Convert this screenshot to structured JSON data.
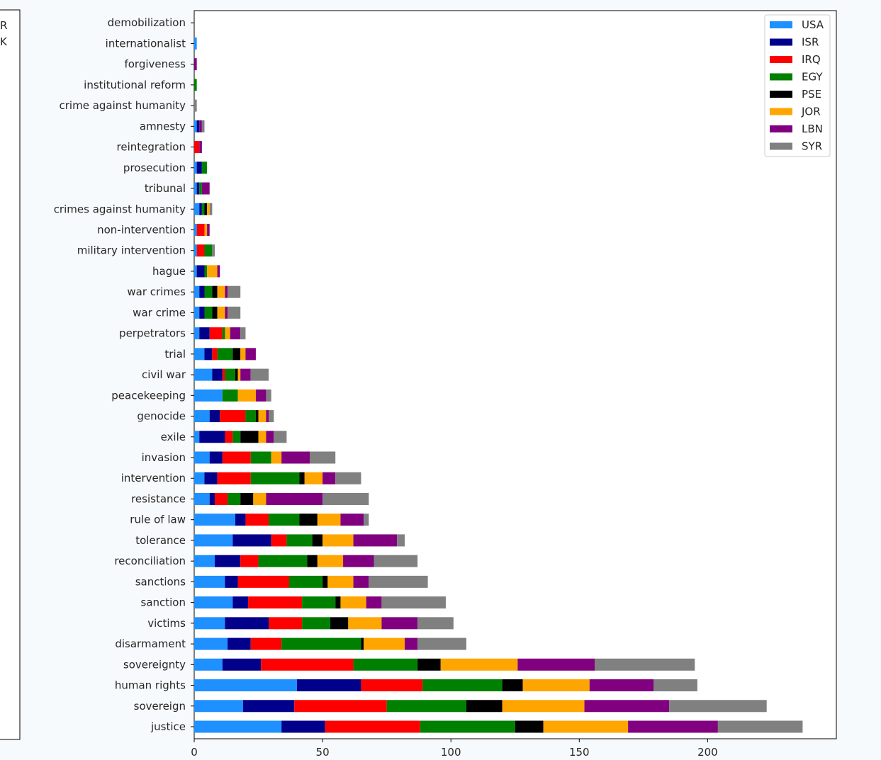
{
  "left_legend_fragments": [
    "R",
    "K"
  ],
  "chart_data": {
    "type": "bar",
    "orientation": "horizontal",
    "stacked": true,
    "title": "",
    "xlabel": "",
    "ylabel": "",
    "xlim": [
      0,
      250
    ],
    "xticks": [
      0,
      50,
      100,
      150,
      200
    ],
    "grid": false,
    "legend_position": "top-right",
    "categories": [
      "justice",
      "sovereign",
      "human rights",
      "sovereignty",
      "disarmament",
      "victims",
      "sanction",
      "sanctions",
      "reconciliation",
      "tolerance",
      "rule of law",
      "resistance",
      "intervention",
      "invasion",
      "exile",
      "genocide",
      "peacekeeping",
      "civil war",
      "trial",
      "perpetrators",
      "war crime",
      "war crimes",
      "hague",
      "military intervention",
      "non-intervention",
      "crimes against humanity",
      "tribunal",
      "prosecution",
      "reintegration",
      "amnesty",
      "crime against humanity",
      "institutional reform",
      "forgiveness",
      "internationalist",
      "demobilization"
    ],
    "series": [
      {
        "name": "USA",
        "color": "#1e90ff",
        "values": [
          34,
          19,
          40,
          11,
          13,
          12,
          15,
          12,
          8,
          15,
          16,
          6,
          4,
          6,
          2,
          6,
          11,
          7,
          4,
          2,
          2,
          2,
          1,
          1,
          1,
          2,
          1,
          1,
          0,
          1,
          0,
          0,
          0,
          1,
          0
        ]
      },
      {
        "name": "ISR",
        "color": "#00008b",
        "values": [
          17,
          20,
          25,
          15,
          9,
          17,
          6,
          5,
          10,
          15,
          4,
          2,
          5,
          5,
          10,
          4,
          0,
          4,
          3,
          4,
          2,
          2,
          3,
          0,
          0,
          1,
          1,
          2,
          0,
          1,
          0,
          0,
          0,
          0,
          0
        ]
      },
      {
        "name": "IRQ",
        "color": "#ff0000",
        "values": [
          37,
          36,
          24,
          36,
          12,
          13,
          21,
          20,
          7,
          6,
          9,
          5,
          13,
          11,
          3,
          10,
          0,
          1,
          2,
          5,
          0,
          0,
          0,
          3,
          3,
          0,
          0,
          0,
          2,
          0,
          0,
          0,
          0,
          0,
          0
        ]
      },
      {
        "name": "EGY",
        "color": "#008000",
        "values": [
          37,
          31,
          31,
          25,
          31,
          11,
          13,
          13,
          19,
          10,
          12,
          5,
          19,
          8,
          3,
          4,
          6,
          4,
          6,
          1,
          3,
          3,
          1,
          3,
          0,
          1,
          1,
          2,
          0,
          0,
          0,
          1,
          0,
          0,
          0
        ]
      },
      {
        "name": "PSE",
        "color": "#000000",
        "values": [
          11,
          14,
          8,
          9,
          1,
          7,
          2,
          2,
          4,
          4,
          7,
          5,
          2,
          0,
          7,
          1,
          0,
          1,
          3,
          0,
          2,
          2,
          0,
          0,
          0,
          1,
          0,
          0,
          0,
          0,
          0,
          0,
          0,
          0,
          0
        ]
      },
      {
        "name": "JOR",
        "color": "#ffa500",
        "values": [
          33,
          32,
          26,
          30,
          16,
          13,
          10,
          10,
          10,
          12,
          9,
          5,
          7,
          4,
          3,
          3,
          7,
          1,
          2,
          2,
          3,
          3,
          4,
          0,
          1,
          1,
          0,
          0,
          0,
          0,
          0,
          0,
          0,
          0,
          0
        ]
      },
      {
        "name": "LBN",
        "color": "#800080",
        "values": [
          35,
          33,
          25,
          30,
          5,
          14,
          6,
          6,
          12,
          17,
          9,
          22,
          5,
          11,
          3,
          1,
          4,
          4,
          4,
          4,
          1,
          1,
          1,
          0,
          1,
          0,
          3,
          0,
          1,
          1,
          0,
          0,
          1,
          0,
          0
        ]
      },
      {
        "name": "SYR",
        "color": "#808080",
        "values": [
          33,
          38,
          17,
          39,
          19,
          14,
          25,
          23,
          17,
          3,
          2,
          18,
          10,
          10,
          5,
          2,
          2,
          7,
          0,
          2,
          5,
          5,
          0,
          1,
          0,
          1,
          0,
          0,
          0,
          1,
          1,
          0,
          0,
          0,
          0
        ]
      }
    ]
  }
}
